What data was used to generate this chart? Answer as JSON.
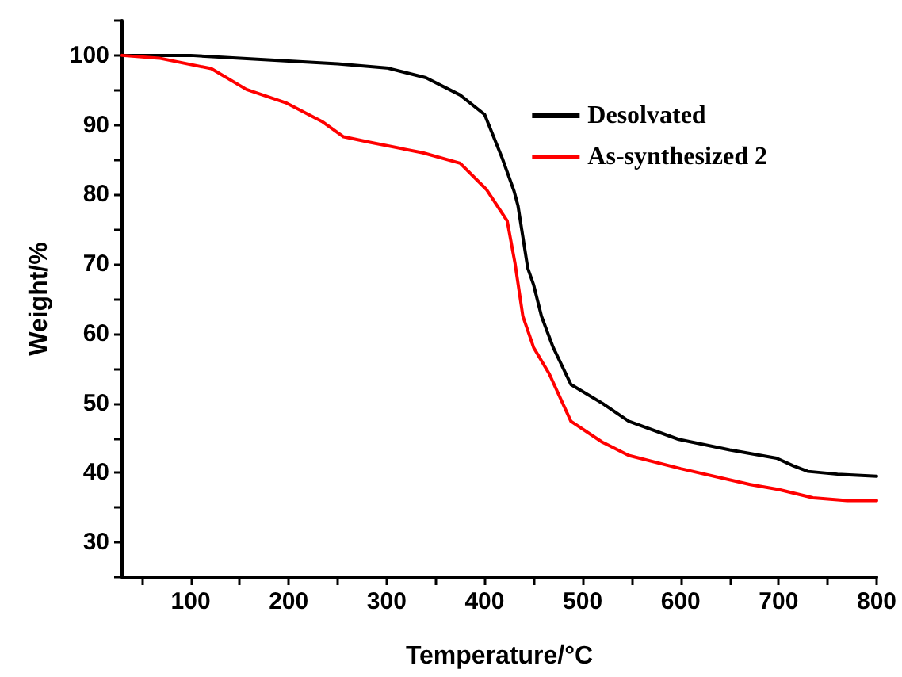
{
  "chart_data": {
    "type": "line",
    "xlabel": "Temperature/°C",
    "ylabel": "Weight/%",
    "xlim": [
      30,
      800
    ],
    "ylim": [
      25,
      105
    ],
    "xticks": [
      {
        "value": 50,
        "label": null
      },
      100,
      {
        "value": 150,
        "label": null
      },
      200,
      {
        "value": 250,
        "label": null
      },
      300,
      {
        "value": 350,
        "label": null
      },
      400,
      {
        "value": 450,
        "label": null
      },
      500,
      {
        "value": 550,
        "label": null
      },
      600,
      {
        "value": 650,
        "label": null
      },
      700,
      {
        "value": 750,
        "label": null
      },
      800
    ],
    "yticks": [
      {
        "value": 25,
        "label": null
      },
      30,
      {
        "value": 35,
        "label": null
      },
      40,
      {
        "value": 45,
        "label": null
      },
      50,
      {
        "value": 55,
        "label": null
      },
      60,
      {
        "value": 65,
        "label": null
      },
      70,
      {
        "value": 75,
        "label": null
      },
      80,
      {
        "value": 85,
        "label": null
      },
      90,
      {
        "value": 95,
        "label": null
      },
      100,
      {
        "value": 105,
        "label": null
      }
    ],
    "grid": false,
    "legend": "top right",
    "marker": "none",
    "line_style": "solid",
    "series": [
      {
        "name": "Desolvated",
        "color": "#000000",
        "x": [
          30,
          100,
          200,
          250,
          300,
          340,
          375,
          400,
          418,
          430,
          434,
          439,
          444,
          450,
          458,
          470,
          488,
          520,
          547,
          598,
          650,
          698,
          715,
          730,
          760,
          800
        ],
        "values": [
          100,
          100,
          99.2,
          98.8,
          98.2,
          96.8,
          94.3,
          91.5,
          85.2,
          80.5,
          78.4,
          73.9,
          69.4,
          67,
          62.5,
          58,
          52.7,
          50,
          47.4,
          44.8,
          43.3,
          42.1,
          41,
          40.2,
          39.8,
          39.5
        ]
      },
      {
        "name": "As-synthesized 2",
        "color": "#ff0000",
        "x": [
          30,
          68,
          121,
          157,
          197,
          234,
          256,
          283,
          337,
          375,
          402,
          423,
          431,
          439,
          450,
          466,
          488,
          520,
          547,
          600,
          671,
          700,
          735,
          770,
          800
        ],
        "values": [
          100,
          99.6,
          98.1,
          95.1,
          93.2,
          90.5,
          88.3,
          87.5,
          86,
          84.5,
          80.7,
          76.2,
          70.1,
          62.5,
          58,
          54.2,
          47.4,
          44.4,
          42.5,
          40.6,
          38.3,
          37.6,
          36.4,
          36,
          36
        ]
      }
    ]
  }
}
